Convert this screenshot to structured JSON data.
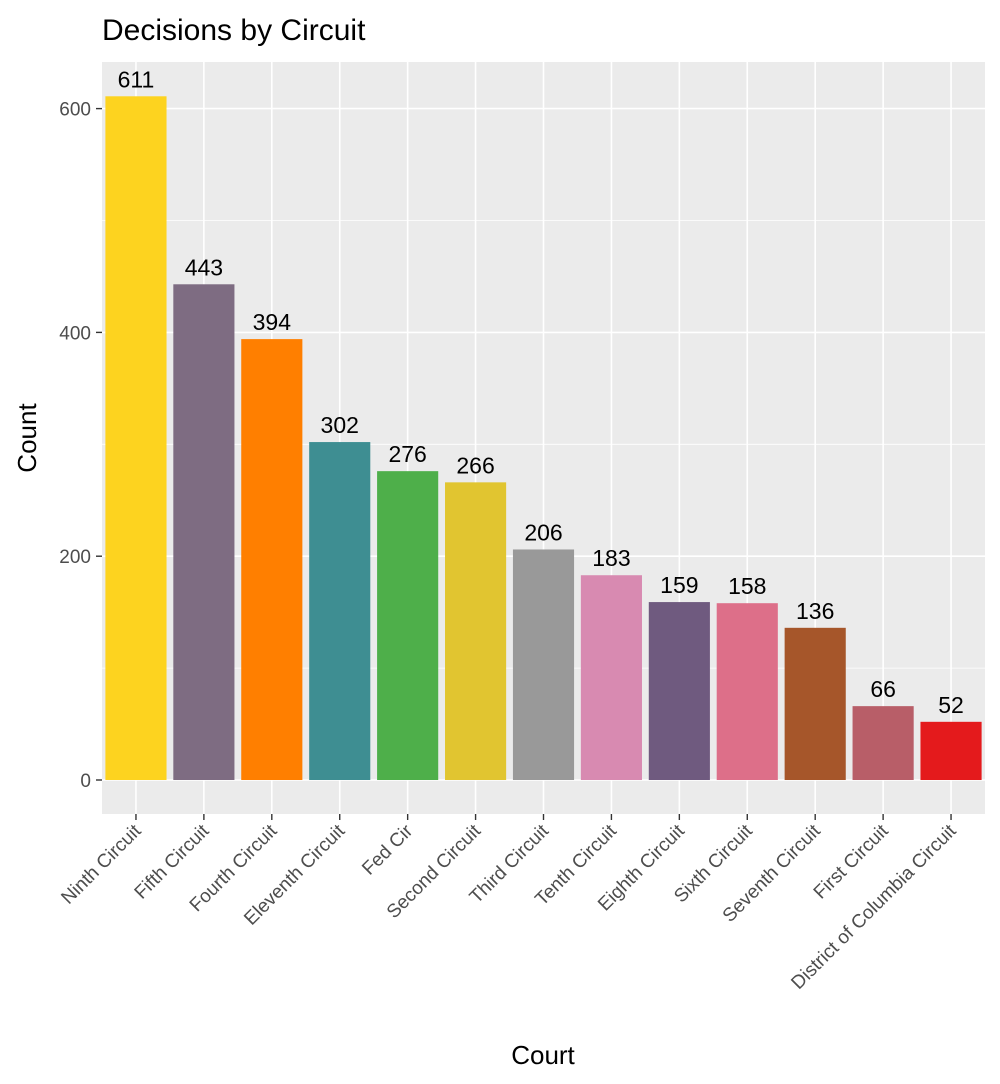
{
  "chart_data": {
    "type": "bar",
    "title": "Decisions by Circuit",
    "xlabel": "Court",
    "ylabel": "Count",
    "ylim": [
      0,
      640
    ],
    "yticks": [
      0,
      200,
      400,
      600
    ],
    "grid": true,
    "categories": [
      "Ninth Circuit",
      "Fifth Circuit",
      "Fourth Circuit",
      "Eleventh Circuit",
      "Fed Cir",
      "Second Circuit",
      "Third Circuit",
      "Tenth Circuit",
      "Eighth Circuit",
      "Sixth Circuit",
      "Seventh Circuit",
      "First Circuit",
      "District of Columbia Circuit"
    ],
    "values": [
      611,
      443,
      394,
      302,
      276,
      266,
      206,
      183,
      159,
      158,
      136,
      66,
      52
    ],
    "labels": [
      "611",
      "443",
      "394",
      "302",
      "276",
      "266",
      "206",
      "183",
      "159",
      "158",
      "136",
      "66",
      "52"
    ],
    "colors": [
      "#FDD31F",
      "#7E6C82",
      "#FF7F00",
      "#3E8E92",
      "#4EAF4A",
      "#E1C530",
      "#999999",
      "#D88AB1",
      "#6F5A7F",
      "#DD6F89",
      "#A6562A",
      "#B85E68",
      "#E41A1C"
    ]
  }
}
